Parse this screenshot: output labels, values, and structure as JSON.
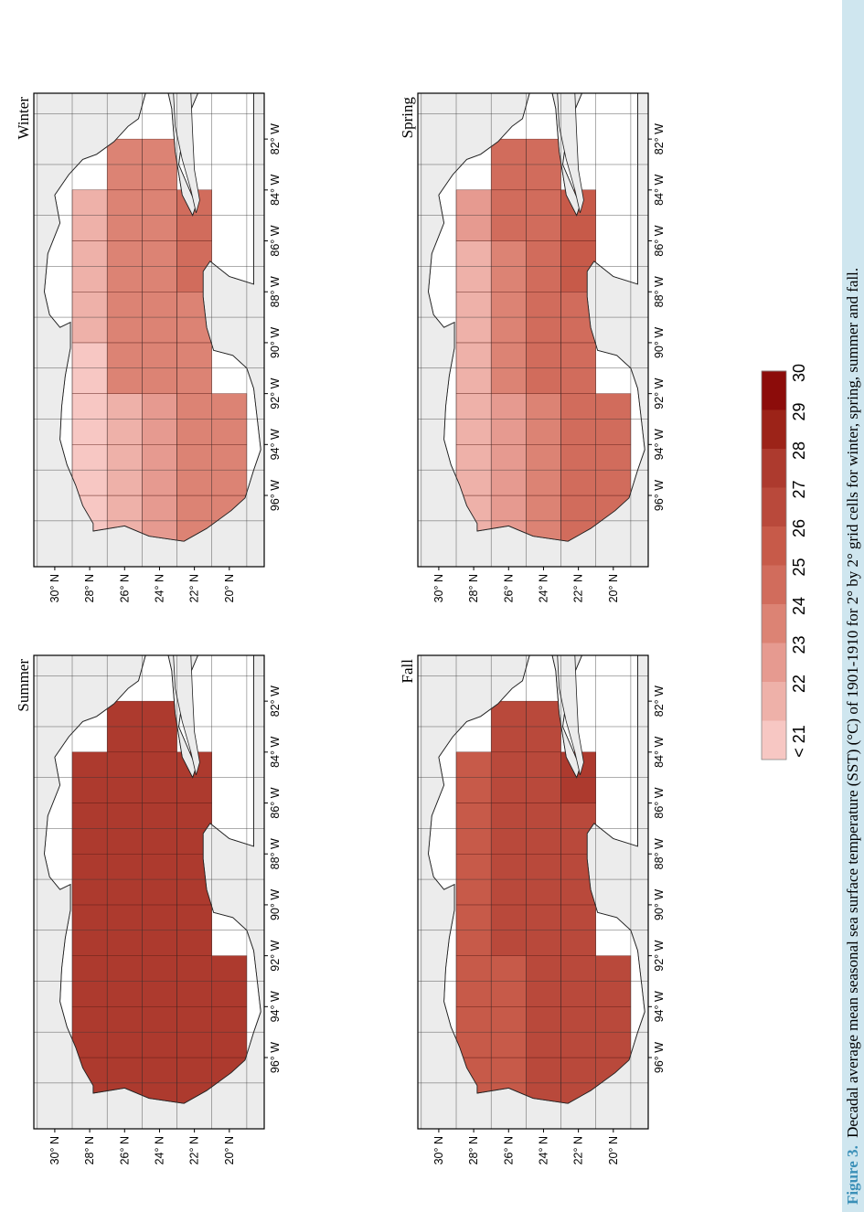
{
  "figure": {
    "caption_label": "Figure 3.",
    "caption_text": "Decadal average mean seasonal sea surface temperature (SST) (°C) of 1901-1910 for 2° by 2° grid cells for winter, spring, summer and fall.",
    "caption_bar_color": "#cfe6ef"
  },
  "chart_data": {
    "type": "heatmap",
    "panels": [
      {
        "title": "Winter",
        "rows_lat_center": [
          28,
          26,
          24,
          22,
          20
        ],
        "cols_lon_center": [
          -97,
          -95,
          -93,
          -91,
          -89,
          -87,
          -85,
          -83
        ],
        "bins": [
          [
            0,
            0,
            0,
            0,
            1,
            1,
            1,
            null
          ],
          [
            1,
            1,
            1,
            3,
            3,
            3,
            3,
            3
          ],
          [
            2,
            2,
            2,
            3,
            3,
            3,
            3,
            3
          ],
          [
            3,
            3,
            3,
            3,
            3,
            4,
            4,
            null
          ],
          [
            3,
            3,
            3,
            null,
            null,
            null,
            null,
            null
          ]
        ]
      },
      {
        "title": "Spring",
        "rows_lat_center": [
          28,
          26,
          24,
          22,
          20
        ],
        "cols_lon_center": [
          -97,
          -95,
          -93,
          -91,
          -89,
          -87,
          -85,
          -83
        ],
        "bins": [
          [
            1,
            1,
            1,
            1,
            1,
            1,
            2,
            null
          ],
          [
            2,
            2,
            2,
            3,
            3,
            3,
            4,
            4
          ],
          [
            3,
            3,
            3,
            4,
            4,
            4,
            4,
            4
          ],
          [
            4,
            4,
            4,
            4,
            4,
            5,
            5,
            null
          ],
          [
            4,
            4,
            4,
            null,
            null,
            null,
            null,
            null
          ]
        ]
      },
      {
        "title": "Summer",
        "rows_lat_center": [
          28,
          26,
          24,
          22,
          20
        ],
        "cols_lon_center": [
          -97,
          -95,
          -93,
          -91,
          -89,
          -87,
          -85,
          -83
        ],
        "bins": [
          [
            7,
            7,
            7,
            7,
            7,
            7,
            7,
            null
          ],
          [
            7,
            7,
            7,
            7,
            7,
            7,
            7,
            7
          ],
          [
            7,
            7,
            7,
            7,
            7,
            7,
            7,
            7
          ],
          [
            7,
            7,
            7,
            7,
            7,
            7,
            7,
            null
          ],
          [
            7,
            7,
            7,
            null,
            null,
            null,
            null,
            null
          ]
        ]
      },
      {
        "title": "Fall",
        "rows_lat_center": [
          28,
          26,
          24,
          22,
          20
        ],
        "cols_lon_center": [
          -97,
          -95,
          -93,
          -91,
          -89,
          -87,
          -85,
          -83
        ],
        "bins": [
          [
            5,
            5,
            5,
            5,
            5,
            5,
            5,
            null
          ],
          [
            5,
            5,
            5,
            6,
            6,
            6,
            6,
            6
          ],
          [
            6,
            6,
            6,
            6,
            6,
            6,
            6,
            6
          ],
          [
            6,
            6,
            6,
            6,
            6,
            6,
            7,
            null
          ],
          [
            6,
            6,
            6,
            null,
            null,
            null,
            null,
            null
          ]
        ]
      }
    ],
    "lat_ticks": [
      "30° N",
      "28° N",
      "26° N",
      "24° N",
      "22° N",
      "20° N"
    ],
    "lon_ticks": [
      "96° W",
      "94° W",
      "92° W",
      "90° W",
      "88° W",
      "86° W",
      "84° W",
      "82° W"
    ],
    "colorbar": {
      "tick_labels": [
        "< 21",
        "22",
        "23",
        "24",
        "25",
        "26",
        "27",
        "28",
        "29",
        "30"
      ],
      "colors": [
        "#f7c7c3",
        "#eeb1a9",
        "#e69a90",
        "#dc8374",
        "#d16c5c",
        "#c75a49",
        "#b9493b",
        "#ad3a2e",
        "#9c2318",
        "#8c0c0a"
      ]
    },
    "grid": true
  }
}
